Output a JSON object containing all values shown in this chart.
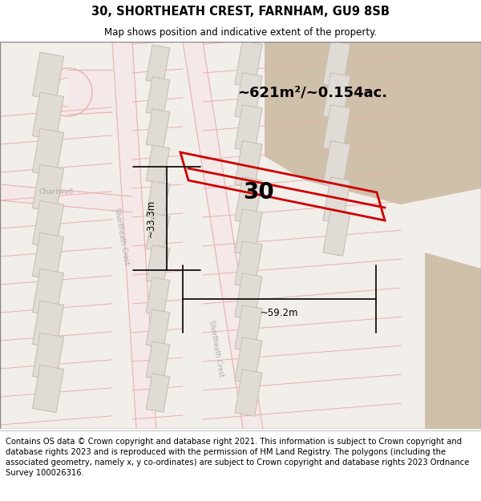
{
  "title_line1": "30, SHORTHEATH CREST, FARNHAM, GU9 8SB",
  "title_line2": "Map shows position and indicative extent of the property.",
  "area_label": "~621m²/~0.154ac.",
  "width_label": "~59.2m",
  "height_label": "~33.3m",
  "property_number": "30",
  "footer_text": "Contains OS data © Crown copyright and database right 2021. This information is subject to Crown copyright and database rights 2023 and is reproduced with the permission of HM Land Registry. The polygons (including the associated geometry, namely x, y co-ordinates) are subject to Crown copyright and database rights 2023 Ordnance Survey 100026316.",
  "map_bg": "#f2eeea",
  "road_fill": "#f5e8e8",
  "road_edge": "#e8b0b0",
  "building_fill": "#e0dbd5",
  "building_edge": "#c8c0b8",
  "property_stroke": "#cc0000",
  "tan_area_color": "#cfc0aa",
  "title_fontsize": 10.5,
  "subtitle_fontsize": 8.5,
  "footer_fontsize": 7.2,
  "label_color": "#aaaaaa",
  "dim_line_color": "#000000"
}
